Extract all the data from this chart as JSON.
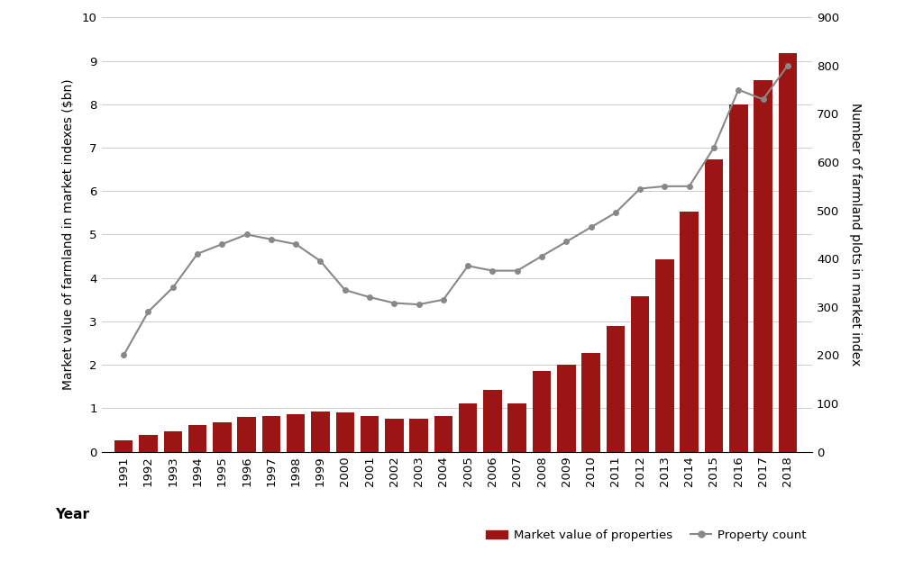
{
  "years": [
    1991,
    1992,
    1993,
    1994,
    1995,
    1996,
    1997,
    1998,
    1999,
    2000,
    2001,
    2002,
    2003,
    2004,
    2005,
    2006,
    2007,
    2008,
    2009,
    2010,
    2011,
    2012,
    2013,
    2014,
    2015,
    2016,
    2017,
    2018
  ],
  "bar_values": [
    0.25,
    0.38,
    0.47,
    0.62,
    0.68,
    0.8,
    0.82,
    0.87,
    0.93,
    0.9,
    0.82,
    0.75,
    0.75,
    0.82,
    1.1,
    1.43,
    1.1,
    1.85,
    2.0,
    2.27,
    2.9,
    3.57,
    4.43,
    5.52,
    6.72,
    8.0,
    8.55,
    9.18
  ],
  "line_values": [
    200,
    290,
    340,
    410,
    430,
    450,
    440,
    430,
    395,
    335,
    320,
    308,
    305,
    315,
    385,
    375,
    375,
    405,
    435,
    465,
    495,
    545,
    550,
    550,
    630,
    750,
    730,
    800
  ],
  "bar_color": "#9B1515",
  "line_color": "#888888",
  "marker_color": "#888888",
  "background_color": "#ffffff",
  "grid_color": "#cccccc",
  "left_ylabel": "Market value of farmland in market indexes ($bn)",
  "right_ylabel": "Number of farmland plots in market index",
  "xlabel": "Year",
  "left_ylim": [
    0,
    10
  ],
  "right_ylim": [
    0,
    900
  ],
  "left_yticks": [
    0,
    1,
    2,
    3,
    4,
    5,
    6,
    7,
    8,
    9,
    10
  ],
  "right_yticks": [
    0,
    100,
    200,
    300,
    400,
    500,
    600,
    700,
    800,
    900
  ],
  "legend_items": [
    "Market value of properties",
    "Property count"
  ],
  "label_fontsize": 10,
  "tick_fontsize": 9.5
}
